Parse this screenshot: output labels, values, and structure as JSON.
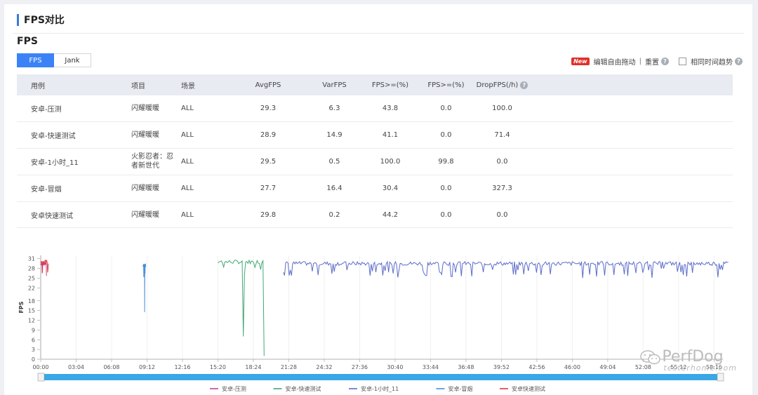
{
  "page": {
    "title": "FPS对比"
  },
  "section": {
    "title": "FPS"
  },
  "tabs": [
    {
      "label": "FPS"
    },
    {
      "label": "Jank"
    }
  ],
  "toolbar": {
    "badge": "New",
    "edit_label": "编辑自由拖动",
    "separator": "|",
    "reset_label": "重置",
    "same_time_label": "相同时间趋势"
  },
  "table": {
    "headers": [
      "用例",
      "项目",
      "场景",
      "AvgFPS",
      "VarFPS",
      "FPS>=(%)",
      "FPS>=(%)",
      "DropFPS(/h)"
    ],
    "rows": [
      [
        "安卓-压测",
        "闪耀暖暖",
        "ALL",
        "29.3",
        "6.3",
        "43.8",
        "0.0",
        "100.0"
      ],
      [
        "安卓-快速测试",
        "闪耀暖暖",
        "ALL",
        "28.9",
        "14.9",
        "41.1",
        "0.0",
        "71.4"
      ],
      [
        "安卓-1小时_11",
        "火影忍者：忍者新世代",
        "ALL",
        "29.5",
        "0.5",
        "100.0",
        "99.8",
        "0.0"
      ],
      [
        "安卓-冒烟",
        "闪耀暖暖",
        "ALL",
        "27.7",
        "16.4",
        "30.4",
        "0.0",
        "327.3"
      ],
      [
        "安卓快速测试",
        "闪耀暖暖",
        "ALL",
        "29.8",
        "0.2",
        "44.2",
        "0.0",
        "0.0"
      ]
    ]
  },
  "chart_data": {
    "type": "line",
    "ylabel": "FPS",
    "xlabel": "",
    "yticks": [
      0,
      3,
      6,
      9,
      12,
      15,
      18,
      22,
      25,
      28,
      31
    ],
    "ylim": [
      0,
      32
    ],
    "xticks": [
      "00:00",
      "03:04",
      "06:08",
      "09:12",
      "12:16",
      "15:20",
      "18:24",
      "21:28",
      "24:32",
      "27:36",
      "30:40",
      "33:44",
      "36:48",
      "39:52",
      "42:56",
      "46:00",
      "49:04",
      "52:08",
      "55:12",
      "58:16"
    ],
    "grid": true,
    "legend_position": "bottom",
    "series": [
      {
        "name": "安卓-压测",
        "color": "#c0469c",
        "x_range": [
          "00:00",
          "00:30"
        ],
        "typical": 29.5,
        "min": 12
      },
      {
        "name": "安卓-快速测试",
        "color": "#43a873",
        "x_range": [
          "15:20",
          "19:20"
        ],
        "typical": 30,
        "min": 0
      },
      {
        "name": "安卓-1小时_11",
        "color": "#5c6cc9",
        "x_range": [
          "21:00",
          "59:30"
        ],
        "typical": 29.5,
        "min": 25
      },
      {
        "name": "安卓-冒烟",
        "color": "#4a90d9",
        "x_range": [
          "08:50",
          "09:05"
        ],
        "typical": 29,
        "min": 12
      },
      {
        "name": "安卓快速测试",
        "color": "#e03b3b",
        "x_range": [
          "00:00",
          "00:40"
        ],
        "typical": 30,
        "min": 29
      }
    ]
  },
  "watermark": {
    "text": "PerfDog",
    "sub": "testerhome.com"
  }
}
